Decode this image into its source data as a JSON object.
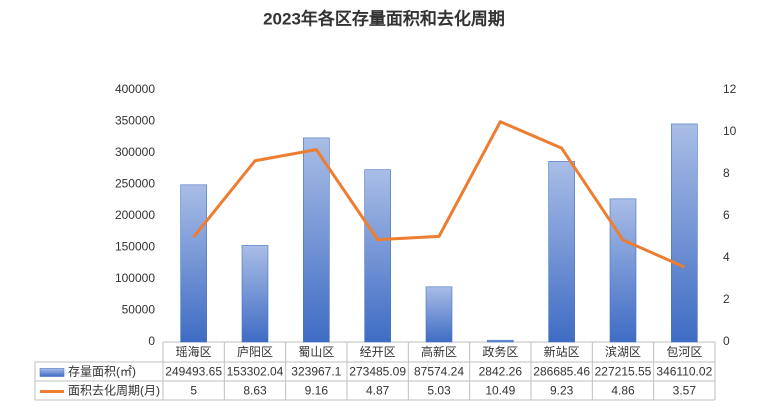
{
  "chart_data": {
    "type": "bar-line",
    "title": "2023年各区存量面积和去化周期",
    "categories": [
      "瑶海区",
      "庐阳区",
      "蜀山区",
      "经开区",
      "高新区",
      "政务区",
      "新站区",
      "滨湖区",
      "包河区"
    ],
    "series": [
      {
        "name": "存量面积(㎡)",
        "type": "bar",
        "color": "#4472c4",
        "values": [
          249493.65,
          153302.04,
          323967.1,
          273485.09,
          87574.24,
          2842.26,
          286685.46,
          227215.55,
          346110.02
        ]
      },
      {
        "name": "面积去化周期(月)",
        "type": "line",
        "axis": "y2",
        "color": "#ed7d31",
        "values": [
          5,
          8.63,
          9.16,
          4.87,
          5.03,
          10.49,
          9.23,
          4.86,
          3.57
        ]
      }
    ],
    "ylim": [
      0,
      400000
    ],
    "yticks": [
      0,
      50000,
      100000,
      150000,
      200000,
      250000,
      300000,
      350000,
      400000
    ],
    "y2lim": [
      0,
      12
    ],
    "y2ticks": [
      0,
      2,
      4,
      6,
      8,
      10,
      12
    ],
    "grid": false,
    "legend": "table"
  }
}
